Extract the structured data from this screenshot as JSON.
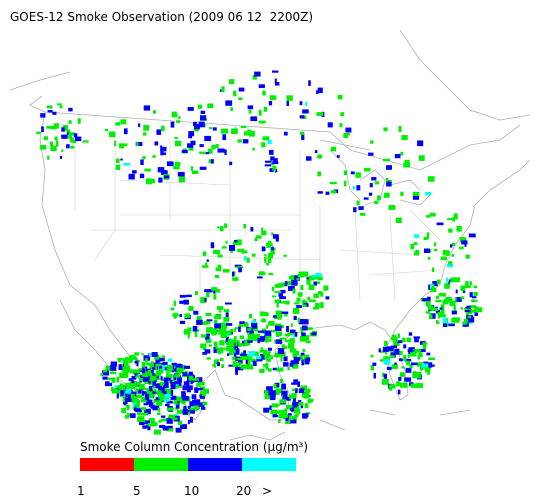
{
  "title": "GOES-12 Smoke Observation (2009 06 12  2200Z)",
  "legend": {
    "title": "Smoke Column Concentration (μg/m³)",
    "colors": [
      "#ff0000",
      "#00ee00",
      "#0000ff",
      "#00ffff"
    ],
    "labels": [
      "1",
      "5",
      "10",
      "20",
      ">"
    ]
  }
}
